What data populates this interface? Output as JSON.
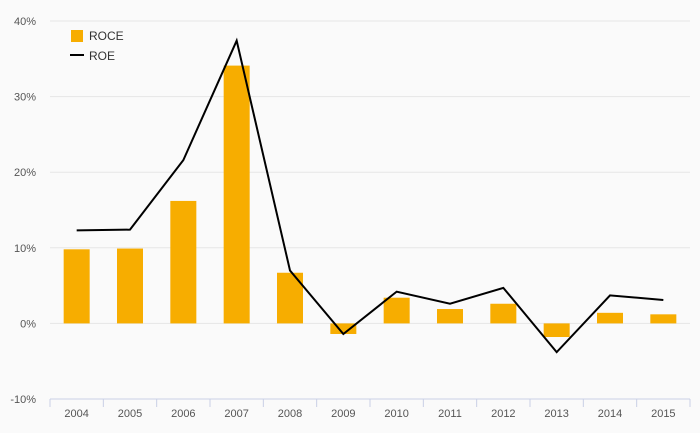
{
  "chart_data": {
    "type": "bar",
    "categories": [
      "2004",
      "2005",
      "2006",
      "2007",
      "2008",
      "2009",
      "2010",
      "2011",
      "2012",
      "2013",
      "2014",
      "2015"
    ],
    "series": [
      {
        "name": "ROCE",
        "type": "bar",
        "color": "#f7ad00",
        "values": [
          9.8,
          9.9,
          16.2,
          34.1,
          6.7,
          -1.4,
          3.4,
          1.9,
          2.6,
          -1.8,
          1.4,
          1.2
        ]
      },
      {
        "name": "ROE",
        "type": "line",
        "color": "#000000",
        "values": [
          12.3,
          12.4,
          21.6,
          37.4,
          7.0,
          -1.4,
          4.2,
          2.6,
          4.7,
          -3.8,
          3.7,
          3.1
        ]
      }
    ],
    "y_ticks": [
      "-10%",
      "0%",
      "10%",
      "20%",
      "30%",
      "40%"
    ],
    "ylim": [
      -10,
      40
    ],
    "grid": true,
    "legend_position": "top-left"
  }
}
